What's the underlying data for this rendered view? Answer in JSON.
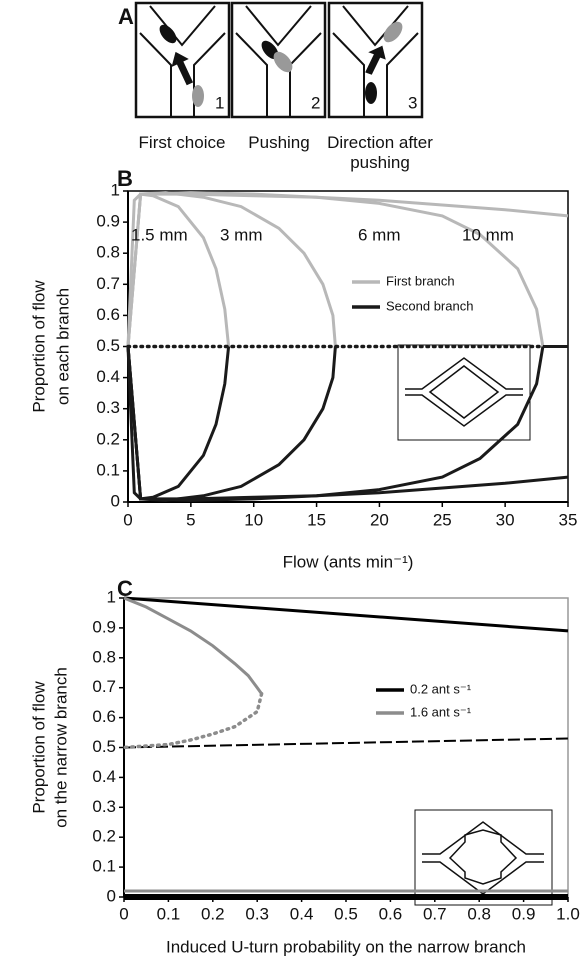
{
  "panel_a": {
    "label": "A",
    "numbers": [
      "1",
      "2",
      "3"
    ],
    "captions": [
      "First choice",
      "Pushing",
      "Direction after pushing"
    ]
  },
  "chart_data": [
    {
      "type": "line",
      "label": "B",
      "xlabel": "Flow (ants min⁻¹)",
      "ylabel": [
        "Proportion of flow",
        "on each branch"
      ],
      "xlim": [
        0,
        35
      ],
      "ylim": [
        0,
        1
      ],
      "xticks": [
        0,
        5,
        10,
        15,
        20,
        25,
        30,
        35
      ],
      "yticks": [
        0,
        0.1,
        0.2,
        0.3,
        0.4,
        0.5,
        0.6,
        0.7,
        0.8,
        0.9,
        1
      ],
      "grid": false,
      "frame": "#000000",
      "annotations": [
        "1.5 mm",
        "3 mm",
        "6 mm",
        "10 mm"
      ],
      "series": [
        {
          "name": "First branch",
          "color": "#b8b8b8",
          "curves": [
            {
              "style": "solid",
              "x": [
                0,
                0.5,
                1,
                2,
                4,
                6,
                7,
                7.7,
                8
              ],
              "values": [
                0.5,
                0.97,
                0.99,
                0.985,
                0.95,
                0.85,
                0.75,
                0.62,
                0.5
              ]
            },
            {
              "style": "solid",
              "x": [
                0,
                1,
                3,
                6,
                9,
                12,
                14,
                15.5,
                16.3,
                16.5
              ],
              "values": [
                0.5,
                0.99,
                0.995,
                0.98,
                0.95,
                0.88,
                0.8,
                0.7,
                0.6,
                0.5
              ]
            },
            {
              "style": "solid",
              "x": [
                0,
                1,
                5,
                10,
                15,
                20,
                25,
                28,
                31,
                32.5,
                33
              ],
              "values": [
                0.5,
                0.99,
                0.995,
                0.99,
                0.98,
                0.96,
                0.92,
                0.86,
                0.75,
                0.62,
                0.5
              ]
            },
            {
              "style": "solid",
              "x": [
                0,
                1,
                5,
                10,
                15,
                20,
                25,
                30,
                35
              ],
              "values": [
                0.5,
                0.99,
                0.99,
                0.985,
                0.98,
                0.97,
                0.955,
                0.94,
                0.92
              ]
            }
          ]
        },
        {
          "name": "Second branch",
          "color": "#1a1a1a",
          "curves": [
            {
              "style": "solid",
              "x": [
                0,
                0.5,
                1,
                2,
                4,
                6,
                7,
                7.7,
                8
              ],
              "values": [
                0.5,
                0.03,
                0.01,
                0.015,
                0.05,
                0.15,
                0.25,
                0.38,
                0.5
              ]
            },
            {
              "style": "solid",
              "x": [
                0,
                1,
                3,
                6,
                9,
                12,
                14,
                15.5,
                16.3,
                16.5
              ],
              "values": [
                0.5,
                0.01,
                0.005,
                0.02,
                0.05,
                0.12,
                0.2,
                0.3,
                0.4,
                0.5
              ]
            },
            {
              "style": "solid",
              "x": [
                0,
                1,
                5,
                10,
                15,
                20,
                25,
                28,
                31,
                32.5,
                33
              ],
              "values": [
                0.5,
                0.01,
                0.005,
                0.01,
                0.02,
                0.04,
                0.08,
                0.14,
                0.25,
                0.38,
                0.5
              ]
            },
            {
              "style": "solid",
              "x": [
                0,
                1,
                5,
                10,
                15,
                20,
                25,
                30,
                35
              ],
              "values": [
                0.5,
                0.01,
                0.01,
                0.015,
                0.02,
                0.03,
                0.045,
                0.06,
                0.08
              ]
            },
            {
              "style": "dotted",
              "x": [
                0,
                33
              ],
              "values": [
                0.5,
                0.5
              ]
            },
            {
              "style": "solid",
              "x": [
                33,
                35
              ],
              "values": [
                0.5,
                0.5
              ]
            }
          ]
        }
      ]
    },
    {
      "type": "line",
      "label": "C",
      "xlabel": "Induced U-turn probability on the narrow branch",
      "ylabel": [
        "Proportion of flow",
        "on the narrow branch"
      ],
      "xlim": [
        0,
        1
      ],
      "ylim": [
        0,
        1
      ],
      "xticks": [
        0,
        0.1,
        0.2,
        0.3,
        0.4,
        0.5,
        0.6,
        0.7,
        0.8,
        0.9,
        {
          "value": 1,
          "label": "1.0"
        }
      ],
      "yticks": [
        0,
        0.1,
        0.2,
        0.3,
        0.4,
        0.5,
        0.6,
        0.7,
        0.8,
        0.9,
        1
      ],
      "grid": false,
      "frame": "#999999",
      "series": [
        {
          "name": "0.2 ant s⁻¹",
          "color": "#000000",
          "curves": [
            {
              "style": "solid",
              "x": [
                0,
                1
              ],
              "values": [
                1,
                0.89
              ]
            },
            {
              "style": "dashed",
              "x": [
                0,
                1
              ],
              "values": [
                0.5,
                0.53
              ]
            },
            {
              "style": "thick",
              "x": [
                0,
                1
              ],
              "values": [
                0,
                0
              ]
            }
          ]
        },
        {
          "name": "1.6 ant s⁻¹",
          "color": "#8c8c8c",
          "curves": [
            {
              "style": "solid",
              "x": [
                0,
                0.05,
                0.1,
                0.15,
                0.2,
                0.25,
                0.28,
                0.3,
                0.31
              ],
              "values": [
                1,
                0.97,
                0.93,
                0.89,
                0.84,
                0.78,
                0.74,
                0.7,
                0.68
              ]
            },
            {
              "style": "dotted",
              "x": [
                0.31,
                0.3,
                0.25,
                0.2,
                0.15,
                0.1,
                0.05,
                0
              ],
              "values": [
                0.68,
                0.62,
                0.57,
                0.545,
                0.525,
                0.51,
                0.505,
                0.5
              ]
            },
            {
              "style": "solid",
              "x": [
                0,
                1
              ],
              "values": [
                0.02,
                0.02
              ]
            }
          ]
        }
      ]
    }
  ]
}
